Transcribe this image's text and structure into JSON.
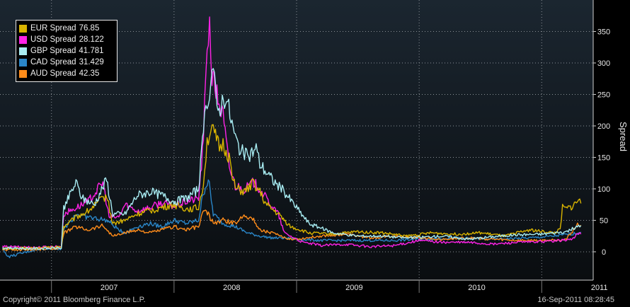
{
  "chart_data": {
    "type": "line",
    "ylabel": "Spread",
    "ylim": [
      -45,
      400
    ],
    "yticks": [
      0,
      50,
      100,
      150,
      200,
      250,
      300,
      350
    ],
    "x_tick_labels": [
      "2007",
      "2008",
      "2009",
      "2010",
      "2011"
    ],
    "grid": true,
    "legend_position": "top-left",
    "series": [
      {
        "name": "EUR Spread",
        "last": "76.85",
        "color": "#d9b400",
        "points": [
          [
            2006.6,
            5
          ],
          [
            2006.9,
            6
          ],
          [
            2007.08,
            8
          ],
          [
            2007.1,
            40
          ],
          [
            2007.2,
            55
          ],
          [
            2007.3,
            65
          ],
          [
            2007.45,
            90
          ],
          [
            2007.5,
            45
          ],
          [
            2007.6,
            50
          ],
          [
            2007.7,
            60
          ],
          [
            2007.8,
            65
          ],
          [
            2007.9,
            70
          ],
          [
            2008.0,
            75
          ],
          [
            2008.1,
            68
          ],
          [
            2008.2,
            70
          ],
          [
            2008.24,
            110
          ],
          [
            2008.27,
            175
          ],
          [
            2008.3,
            195
          ],
          [
            2008.33,
            185
          ],
          [
            2008.37,
            165
          ],
          [
            2008.4,
            170
          ],
          [
            2008.45,
            150
          ],
          [
            2008.5,
            100
          ],
          [
            2008.58,
            95
          ],
          [
            2008.65,
            110
          ],
          [
            2008.7,
            95
          ],
          [
            2008.75,
            75
          ],
          [
            2008.85,
            60
          ],
          [
            2008.95,
            40
          ],
          [
            2009.1,
            30
          ],
          [
            2009.3,
            28
          ],
          [
            2009.5,
            32
          ],
          [
            2009.7,
            30
          ],
          [
            2009.9,
            25
          ],
          [
            2010.1,
            30
          ],
          [
            2010.3,
            28
          ],
          [
            2010.5,
            30
          ],
          [
            2010.7,
            25
          ],
          [
            2010.9,
            35
          ],
          [
            2011.0,
            32
          ],
          [
            2011.1,
            30
          ],
          [
            2011.15,
            35
          ],
          [
            2011.17,
            70
          ],
          [
            2011.2,
            68
          ],
          [
            2011.25,
            72
          ],
          [
            2011.3,
            82
          ],
          [
            2011.32,
            76.85
          ]
        ]
      },
      {
        "name": "USD Spread",
        "last": "28.122",
        "color": "#ff22e6",
        "points": [
          [
            2006.6,
            8
          ],
          [
            2006.9,
            7
          ],
          [
            2007.08,
            9
          ],
          [
            2007.1,
            60
          ],
          [
            2007.2,
            70
          ],
          [
            2007.3,
            80
          ],
          [
            2007.42,
            110
          ],
          [
            2007.47,
            55
          ],
          [
            2007.55,
            55
          ],
          [
            2007.6,
            75
          ],
          [
            2007.7,
            65
          ],
          [
            2007.8,
            70
          ],
          [
            2007.9,
            78
          ],
          [
            2008.0,
            72
          ],
          [
            2008.1,
            80
          ],
          [
            2008.2,
            85
          ],
          [
            2008.24,
            175
          ],
          [
            2008.27,
            335
          ],
          [
            2008.29,
            362
          ],
          [
            2008.31,
            280
          ],
          [
            2008.35,
            250
          ],
          [
            2008.4,
            215
          ],
          [
            2008.45,
            135
          ],
          [
            2008.5,
            105
          ],
          [
            2008.58,
            100
          ],
          [
            2008.65,
            110
          ],
          [
            2008.7,
            100
          ],
          [
            2008.75,
            85
          ],
          [
            2008.85,
            60
          ],
          [
            2008.9,
            30
          ],
          [
            2009.05,
            15
          ],
          [
            2009.2,
            10
          ],
          [
            2009.4,
            12
          ],
          [
            2009.6,
            8
          ],
          [
            2009.8,
            10
          ],
          [
            2010.0,
            18
          ],
          [
            2010.2,
            15
          ],
          [
            2010.4,
            15
          ],
          [
            2010.6,
            12
          ],
          [
            2010.8,
            15
          ],
          [
            2011.0,
            16
          ],
          [
            2011.15,
            18
          ],
          [
            2011.25,
            20
          ],
          [
            2011.3,
            30
          ],
          [
            2011.32,
            28.122
          ]
        ]
      },
      {
        "name": "GBP Spread",
        "last": "41.781",
        "color": "#a8ecf2",
        "points": [
          [
            2006.6,
            6
          ],
          [
            2006.9,
            5
          ],
          [
            2007.08,
            6
          ],
          [
            2007.1,
            70
          ],
          [
            2007.2,
            110
          ],
          [
            2007.25,
            85
          ],
          [
            2007.35,
            75
          ],
          [
            2007.45,
            115
          ],
          [
            2007.5,
            60
          ],
          [
            2007.6,
            60
          ],
          [
            2007.7,
            90
          ],
          [
            2007.8,
            95
          ],
          [
            2007.9,
            90
          ],
          [
            2008.0,
            80
          ],
          [
            2008.1,
            85
          ],
          [
            2008.2,
            100
          ],
          [
            2008.24,
            190
          ],
          [
            2008.27,
            240
          ],
          [
            2008.3,
            270
          ],
          [
            2008.32,
            300
          ],
          [
            2008.35,
            220
          ],
          [
            2008.42,
            250
          ],
          [
            2008.5,
            180
          ],
          [
            2008.55,
            160
          ],
          [
            2008.6,
            150
          ],
          [
            2008.67,
            165
          ],
          [
            2008.7,
            140
          ],
          [
            2008.8,
            115
          ],
          [
            2008.9,
            95
          ],
          [
            2009.0,
            70
          ],
          [
            2009.1,
            45
          ],
          [
            2009.3,
            30
          ],
          [
            2009.5,
            25
          ],
          [
            2009.7,
            25
          ],
          [
            2009.9,
            22
          ],
          [
            2010.2,
            25
          ],
          [
            2010.4,
            20
          ],
          [
            2010.6,
            24
          ],
          [
            2010.8,
            27
          ],
          [
            2011.0,
            28
          ],
          [
            2011.2,
            32
          ],
          [
            2011.3,
            40
          ],
          [
            2011.32,
            41.781
          ]
        ]
      },
      {
        "name": "CAD Spread",
        "last": "31.429",
        "color": "#2a86c8",
        "points": [
          [
            2006.6,
            4
          ],
          [
            2006.65,
            -8
          ],
          [
            2006.9,
            5
          ],
          [
            2007.08,
            5
          ],
          [
            2007.1,
            35
          ],
          [
            2007.2,
            60
          ],
          [
            2007.3,
            55
          ],
          [
            2007.45,
            50
          ],
          [
            2007.55,
            35
          ],
          [
            2007.6,
            30
          ],
          [
            2007.7,
            40
          ],
          [
            2007.8,
            45
          ],
          [
            2007.9,
            40
          ],
          [
            2008.0,
            50
          ],
          [
            2008.1,
            45
          ],
          [
            2008.2,
            50
          ],
          [
            2008.24,
            95
          ],
          [
            2008.28,
            115
          ],
          [
            2008.32,
            60
          ],
          [
            2008.4,
            45
          ],
          [
            2008.5,
            40
          ],
          [
            2008.6,
            30
          ],
          [
            2008.7,
            25
          ],
          [
            2008.8,
            22
          ],
          [
            2008.9,
            22
          ],
          [
            2009.0,
            20
          ],
          [
            2009.2,
            18
          ],
          [
            2009.5,
            18
          ],
          [
            2009.8,
            18
          ],
          [
            2010.0,
            20
          ],
          [
            2010.3,
            22
          ],
          [
            2010.6,
            20
          ],
          [
            2010.9,
            22
          ],
          [
            2011.1,
            25
          ],
          [
            2011.3,
            30
          ],
          [
            2011.32,
            31.429
          ]
        ]
      },
      {
        "name": "AUD Spread",
        "last": "42.35",
        "color": "#ff8c1a",
        "points": [
          [
            2006.6,
            3
          ],
          [
            2006.9,
            4
          ],
          [
            2007.08,
            6
          ],
          [
            2007.1,
            30
          ],
          [
            2007.2,
            40
          ],
          [
            2007.3,
            35
          ],
          [
            2007.42,
            42
          ],
          [
            2007.5,
            25
          ],
          [
            2007.6,
            30
          ],
          [
            2007.7,
            35
          ],
          [
            2007.8,
            30
          ],
          [
            2007.9,
            35
          ],
          [
            2008.0,
            40
          ],
          [
            2008.1,
            35
          ],
          [
            2008.2,
            40
          ],
          [
            2008.24,
            65
          ],
          [
            2008.28,
            60
          ],
          [
            2008.32,
            45
          ],
          [
            2008.4,
            50
          ],
          [
            2008.5,
            45
          ],
          [
            2008.58,
            60
          ],
          [
            2008.65,
            50
          ],
          [
            2008.7,
            35
          ],
          [
            2008.8,
            30
          ],
          [
            2008.9,
            22
          ],
          [
            2009.0,
            20
          ],
          [
            2009.2,
            25
          ],
          [
            2009.4,
            28
          ],
          [
            2009.6,
            22
          ],
          [
            2009.8,
            25
          ],
          [
            2010.0,
            22
          ],
          [
            2010.2,
            20
          ],
          [
            2010.4,
            22
          ],
          [
            2010.6,
            20
          ],
          [
            2010.8,
            18
          ],
          [
            2011.0,
            18
          ],
          [
            2011.2,
            20
          ],
          [
            2011.3,
            45
          ],
          [
            2011.32,
            42.35
          ]
        ]
      }
    ]
  },
  "footer": {
    "copyright": "Copyright© 2011 Bloomberg Finance L.P.",
    "timestamp": "16-Sep-2011 08:28:45"
  }
}
